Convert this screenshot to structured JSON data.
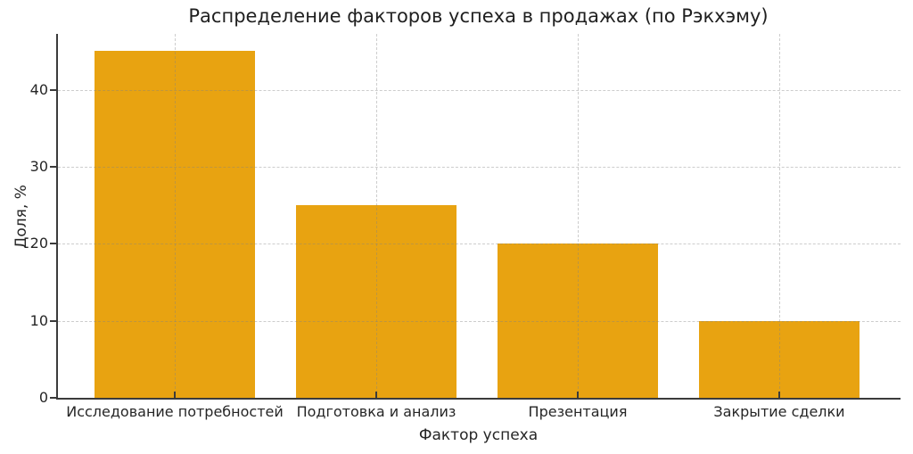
{
  "chart_data": {
    "type": "bar",
    "title": "Распределение факторов успеха в продажах (по Рэкхэму)",
    "xlabel": "Фактор успеха",
    "ylabel": "Доля, %",
    "categories": [
      "Исследование потребностей",
      "Подготовка и анализ",
      "Презентация",
      "Закрытие сделки"
    ],
    "values": [
      45,
      25,
      20,
      10
    ],
    "yticks": [
      0,
      10,
      20,
      30,
      40
    ],
    "ylim": [
      0,
      47.25
    ],
    "grid": "dashed-both-axes",
    "legend": "none",
    "colors": {
      "bar": "#E8A311",
      "background": "#FFFFFF",
      "text": "#262626",
      "spine": "#3B3B3B",
      "gridline": "#D9D9D9"
    }
  }
}
